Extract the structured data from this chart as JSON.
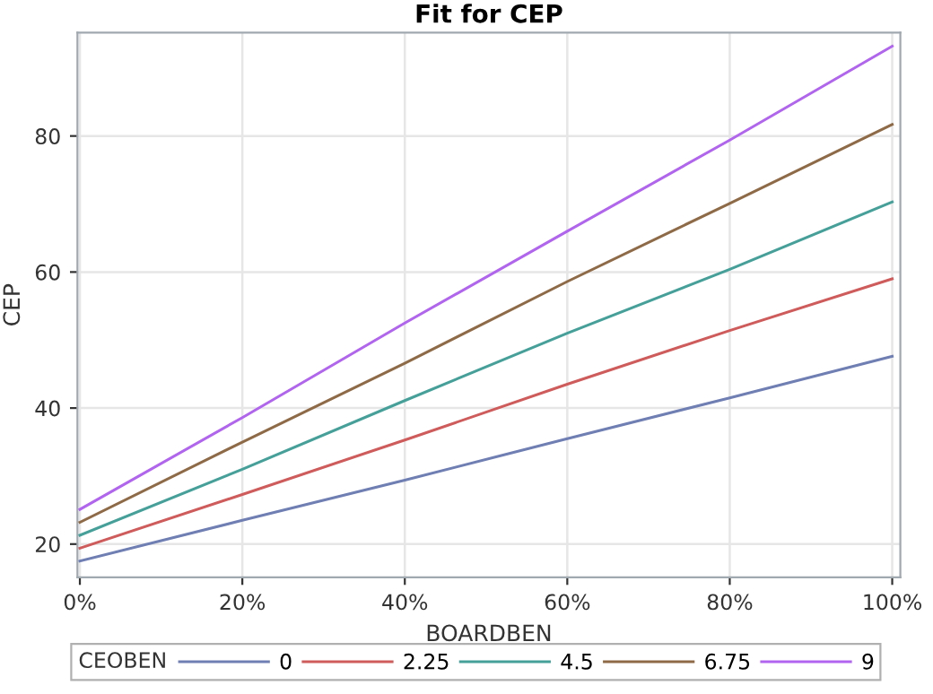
{
  "chart_data": {
    "type": "line",
    "title": "Fit for CEP",
    "xlabel": "BOARDBEN",
    "ylabel": "CEP",
    "legend_title": "CEOBEN",
    "x": [
      0,
      20,
      40,
      60,
      80,
      100
    ],
    "series": [
      {
        "name": "0",
        "color": "#6f7eb3",
        "values": [
          17.5,
          23.5,
          29.4,
          35.5,
          41.5,
          47.6
        ]
      },
      {
        "name": "2.25",
        "color": "#d05b5b",
        "values": [
          19.4,
          27.3,
          35.3,
          43.5,
          51.4,
          59.0
        ]
      },
      {
        "name": "4.5",
        "color": "#45a09a",
        "values": [
          21.3,
          31.0,
          41.1,
          51.0,
          60.4,
          70.3
        ]
      },
      {
        "name": "6.75",
        "color": "#8f6a47",
        "values": [
          23.2,
          35.0,
          46.6,
          58.6,
          70.1,
          81.7
        ]
      },
      {
        "name": "9",
        "color": "#b164f0",
        "values": [
          25.1,
          38.6,
          52.5,
          66.0,
          79.4,
          93.2
        ]
      }
    ],
    "xlim": [
      -0.3,
      101
    ],
    "ylim": [
      15.1,
      95.2
    ],
    "xticks": [
      {
        "value": 0,
        "label": "0%"
      },
      {
        "value": 20,
        "label": "20%"
      },
      {
        "value": 40,
        "label": "40%"
      },
      {
        "value": 60,
        "label": "60%"
      },
      {
        "value": 80,
        "label": "80%"
      },
      {
        "value": 100,
        "label": "100%"
      }
    ],
    "yticks": [
      20,
      40,
      60,
      80
    ],
    "grid": true,
    "legend": "bottom",
    "marker": "none",
    "line_style": "solid"
  }
}
